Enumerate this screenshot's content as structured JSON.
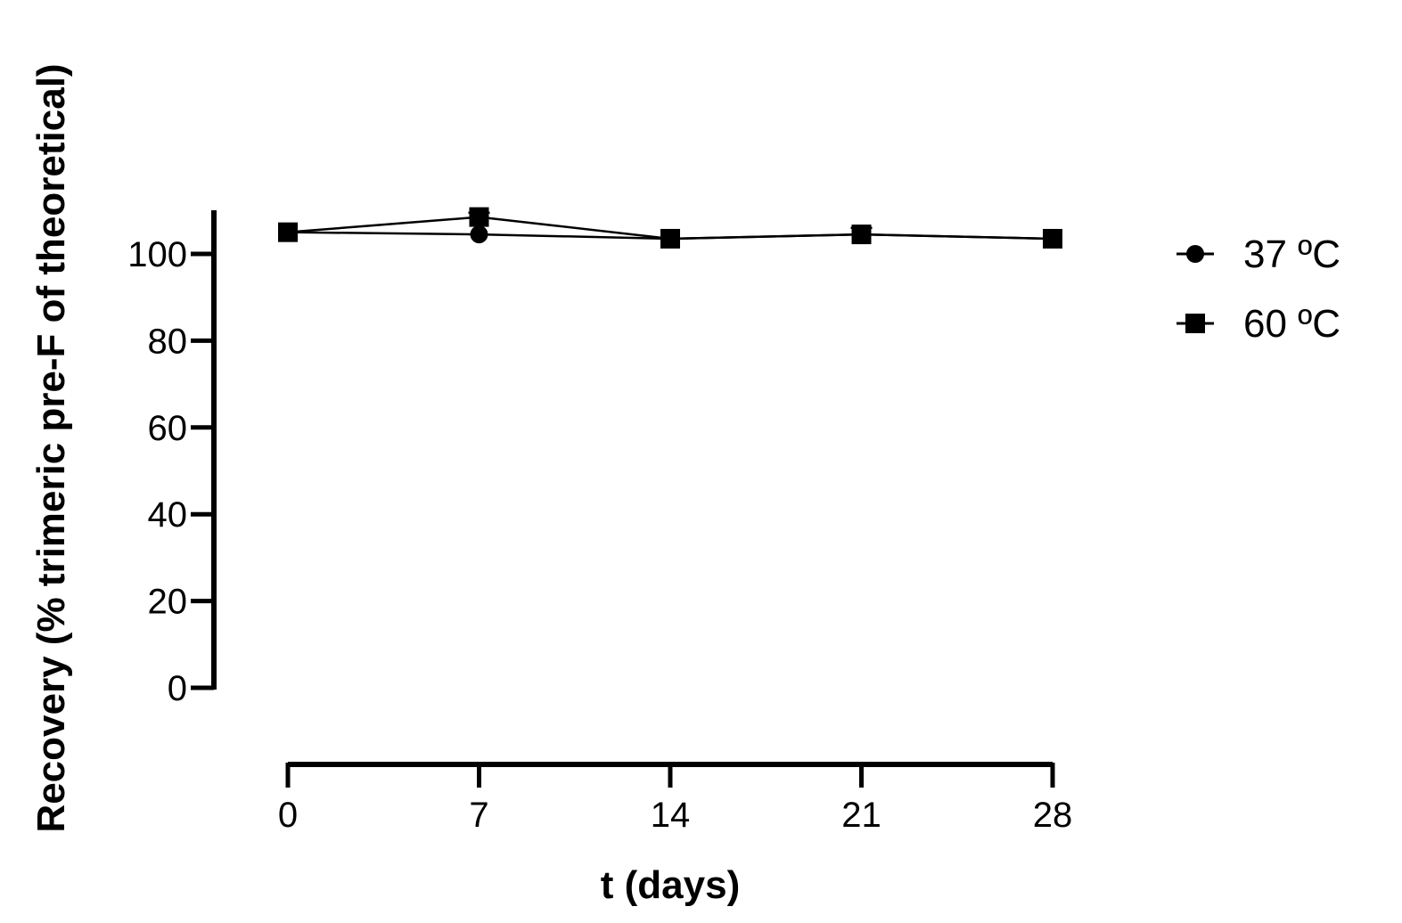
{
  "chart_data": {
    "type": "line",
    "title": "",
    "xlabel": "t (days)",
    "ylabel": "Recovery (% trimeric pre-F of theoretical)",
    "x": [
      0,
      7,
      14,
      21,
      28
    ],
    "x_tick_labels": [
      "0",
      "7",
      "14",
      "21",
      "28"
    ],
    "y_tick_values": [
      0,
      20,
      40,
      60,
      80,
      100
    ],
    "y_tick_labels": [
      "0",
      "20",
      "40",
      "60",
      "80",
      "100"
    ],
    "xlim": [
      0,
      28
    ],
    "ylim": [
      0,
      110
    ],
    "grid": false,
    "legend_position": "right",
    "series": [
      {
        "name": "37 ºC",
        "marker": "circle",
        "color": "#000000",
        "values": [
          105,
          104.5,
          103.5,
          104.5,
          103.5
        ]
      },
      {
        "name": "60 ºC",
        "marker": "square",
        "color": "#000000",
        "values": [
          105,
          108.5,
          103.5,
          104.5,
          103.5
        ],
        "error": [
          0,
          1,
          0,
          1.5,
          0
        ]
      }
    ]
  }
}
